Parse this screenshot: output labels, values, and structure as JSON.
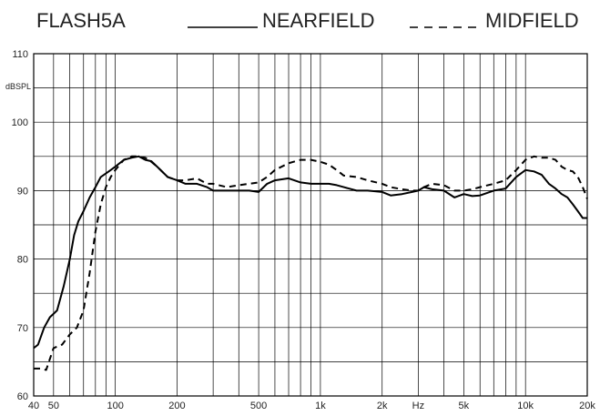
{
  "chart_data": {
    "type": "line",
    "title": "FLASH5A",
    "ylabel": "dBSPL",
    "xlabel": "",
    "x_scale": "log",
    "xlim": [
      40,
      20000
    ],
    "ylim": [
      60,
      110
    ],
    "legend_placement": "top",
    "grid": true,
    "x_ticks": [
      {
        "value": 40,
        "label": "40"
      },
      {
        "value": 50,
        "label": "50"
      },
      {
        "value": 100,
        "label": "100"
      },
      {
        "value": 200,
        "label": "200"
      },
      {
        "value": 500,
        "label": "500"
      },
      {
        "value": 1000,
        "label": "1k"
      },
      {
        "value": 2000,
        "label": "2k"
      },
      {
        "value": 3000,
        "label": "Hz"
      },
      {
        "value": 5000,
        "label": "5k"
      },
      {
        "value": 10000,
        "label": "10k"
      },
      {
        "value": 20000,
        "label": "20k"
      }
    ],
    "y_ticks": [
      {
        "value": 60,
        "label": "60"
      },
      {
        "value": 70,
        "label": "70"
      },
      {
        "value": 80,
        "label": "80"
      },
      {
        "value": 90,
        "label": "90"
      },
      {
        "value": 100,
        "label": "100"
      },
      {
        "value": 110,
        "label": "110"
      }
    ],
    "series": [
      {
        "name": "NEARFIELD",
        "style": "solid",
        "color": "#000000",
        "x": [
          40,
          42,
          45,
          48,
          52,
          56,
          60,
          63,
          66,
          70,
          75,
          80,
          85,
          90,
          95,
          100,
          110,
          120,
          130,
          140,
          150,
          160,
          180,
          200,
          220,
          250,
          280,
          300,
          350,
          400,
          450,
          500,
          550,
          600,
          700,
          800,
          900,
          1000,
          1100,
          1200,
          1300,
          1500,
          1700,
          2000,
          2200,
          2500,
          2800,
          3000,
          3200,
          3500,
          4000,
          4500,
          5000,
          5500,
          6000,
          7000,
          8000,
          9000,
          10000,
          11000,
          12000,
          13000,
          14000,
          15000,
          16000,
          17000,
          18000,
          19000,
          20000
        ],
        "y": [
          67,
          67.5,
          70,
          71.5,
          72.5,
          76,
          80,
          83.5,
          85.5,
          87,
          89,
          90.5,
          92,
          92.5,
          93,
          93.5,
          94.5,
          94.8,
          95,
          94.5,
          94.3,
          93.5,
          92,
          91.5,
          91,
          91,
          90.5,
          90,
          90,
          90,
          90,
          89.8,
          91,
          91.5,
          91.8,
          91.2,
          91,
          91,
          91,
          90.8,
          90.5,
          90,
          90,
          89.8,
          89.3,
          89.5,
          89.8,
          90,
          90.5,
          90.2,
          90,
          89,
          89.5,
          89.2,
          89.3,
          90,
          90.3,
          92,
          93,
          92.8,
          92.3,
          91,
          90.3,
          89.5,
          89,
          88,
          87,
          86,
          86
        ]
      },
      {
        "name": "MIDFIELD",
        "style": "dashed",
        "color": "#000000",
        "x": [
          40,
          43,
          46,
          50,
          55,
          60,
          65,
          70,
          75,
          80,
          85,
          90,
          95,
          100,
          110,
          120,
          130,
          140,
          150,
          160,
          180,
          200,
          220,
          250,
          280,
          300,
          350,
          400,
          450,
          500,
          550,
          600,
          700,
          800,
          900,
          1000,
          1100,
          1200,
          1300,
          1500,
          1700,
          2000,
          2200,
          2500,
          2800,
          3000,
          3200,
          3500,
          4000,
          4500,
          5000,
          5500,
          6000,
          7000,
          8000,
          9000,
          10000,
          11000,
          12000,
          13000,
          14000,
          15000,
          16000,
          17000,
          18000,
          19000,
          20000
        ],
        "y": [
          64,
          64,
          63.8,
          67,
          67.5,
          69,
          70,
          72.5,
          78,
          84,
          88,
          90.5,
          92,
          93,
          94.5,
          95,
          95,
          94.8,
          94.2,
          93.5,
          92,
          91.5,
          91.5,
          91.8,
          91,
          91,
          90.5,
          90.8,
          91,
          91.2,
          92,
          93,
          94,
          94.5,
          94.5,
          94.2,
          93.8,
          93,
          92.2,
          92,
          91.5,
          91,
          90.5,
          90.2,
          90,
          90,
          90.5,
          91,
          90.8,
          90,
          90,
          90.2,
          90.5,
          91,
          91.5,
          93,
          94.5,
          95,
          94.8,
          94.8,
          94.5,
          93.5,
          93,
          92.8,
          92,
          90.5,
          88.8
        ]
      }
    ]
  }
}
